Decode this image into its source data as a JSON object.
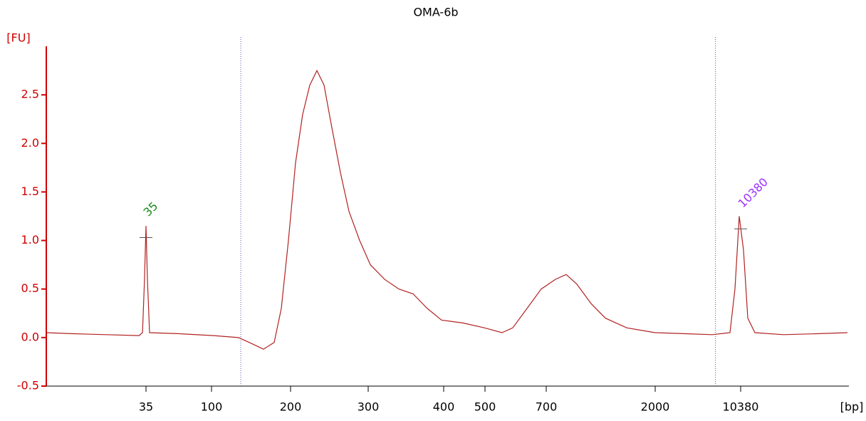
{
  "chart_data": {
    "type": "line",
    "title": "OMA-6b",
    "y_label": "[FU]",
    "x_label": "[bp]",
    "x": [
      15,
      20,
      27,
      33.6,
      34.3,
      34.7,
      35,
      36.4,
      38.5,
      66.8,
      102.7,
      134.2,
      147.7,
      165.8,
      179.3,
      188.3,
      197.3,
      206.4,
      215.6,
      224.8,
      233.9,
      243.1,
      252.3,
      264.2,
      275.2,
      289,
      302.8,
      321.7,
      340.6,
      359.4,
      378.3,
      397.2,
      446.6,
      498.3,
      555.8,
      590.7,
      637.2,
      683.7,
      810.5,
      937.9,
      1065.4,
      1235.3,
      1405.2,
      1660,
      2000,
      4793,
      7587,
      9333,
      9822,
      10240,
      10503,
      10688,
      10996,
      12228,
      13768,
      15000
    ],
    "series": [
      {
        "name": "OMA-6b",
        "color": "#b22222",
        "values": [
          0.05,
          0.04,
          0.03,
          0.02,
          0.05,
          0.6,
          1.15,
          0.6,
          0.05,
          0.04,
          0.02,
          0.0,
          -0.05,
          -0.12,
          -0.05,
          0.3,
          1.0,
          1.8,
          2.3,
          2.6,
          2.75,
          2.6,
          2.2,
          1.7,
          1.3,
          1.0,
          0.75,
          0.6,
          0.5,
          0.45,
          0.3,
          0.18,
          0.15,
          0.1,
          0.05,
          0.1,
          0.3,
          0.5,
          0.6,
          0.65,
          0.55,
          0.35,
          0.2,
          0.1,
          0.05,
          0.04,
          0.03,
          0.05,
          0.5,
          1.25,
          0.9,
          0.2,
          0.05,
          0.03,
          0.04,
          0.05
        ]
      }
    ],
    "xlim": [
      15,
      15000
    ],
    "xticks": [
      35,
      100,
      200,
      300,
      400,
      500,
      700,
      2000,
      10380
    ],
    "ylim": [
      -0.5,
      3.0
    ],
    "yticks": [
      -0.5,
      {
        "value": 0,
        "label": "0.0"
      },
      0.5,
      {
        "value": 1,
        "label": "1.0"
      },
      1.5,
      {
        "value": 2,
        "label": "2.0"
      },
      2.5
    ],
    "region_lines": [
      137,
      7900
    ],
    "annotations": [
      {
        "text": "35",
        "x": 35,
        "y": 1.03,
        "color": "#1a8a1a"
      },
      {
        "text": "10380",
        "x": 10380,
        "y": 1.12,
        "color": "#9b30ff"
      }
    ]
  }
}
